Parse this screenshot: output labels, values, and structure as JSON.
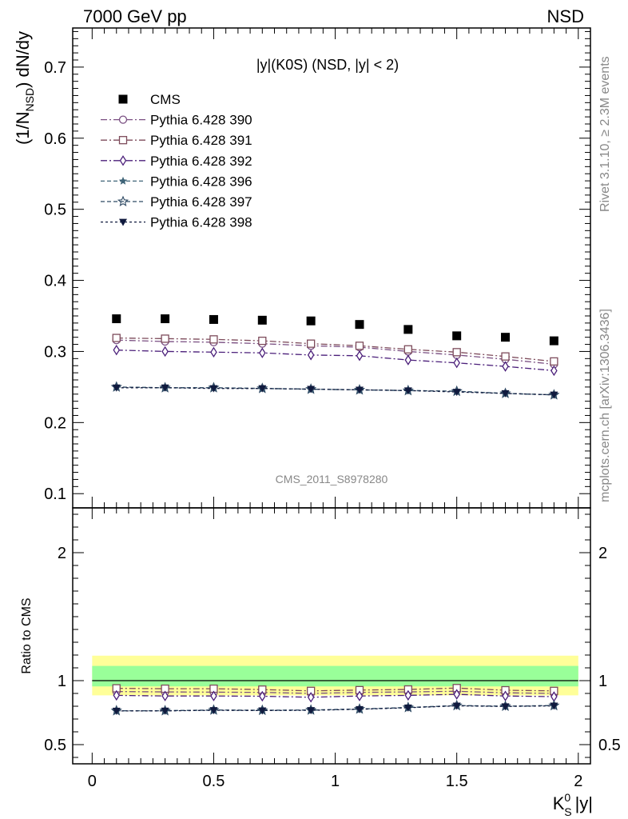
{
  "header": {
    "left": "7000 GeV pp",
    "right": "NSD"
  },
  "side_labels": {
    "rivet": "Rivet 3.1.10, ≥ 2.3M events",
    "mcplots": "mcplots.cern.ch [arXiv:1306.3436]"
  },
  "watermark": "CMS_2011_S8978280",
  "colors": {
    "cms": "#000000",
    "p390": "#7a4f82",
    "p391": "#7d4b5b",
    "p392": "#4b1f7a",
    "p396": "#3f6478",
    "p397": "#2f4a64",
    "p398": "#101a3e",
    "band_yellow": "#ffff99",
    "band_green": "#99ff99"
  },
  "chart_data": [
    {
      "type": "scatter",
      "panel": "main",
      "title": "|y|(K0S) (NSD, |y| < 2)",
      "ylabel": "(1/N_NSD) dN/dy",
      "xlim": [
        -0.08,
        2.05
      ],
      "ylim": [
        0.08,
        0.755
      ],
      "yticks": [
        0.1,
        0.2,
        0.3,
        0.4,
        0.5,
        0.6,
        0.7
      ],
      "ytick_labels": [
        "0.1",
        "0.2",
        "0.3",
        "0.4",
        "0.5",
        "0.6",
        "0.7"
      ],
      "x": [
        0.1,
        0.3,
        0.5,
        0.7,
        0.9,
        1.1,
        1.3,
        1.5,
        1.7,
        1.9
      ],
      "legend_position": "top-left",
      "series": [
        {
          "key": "cms",
          "name": "CMS",
          "marker": "square-filled",
          "values": [
            0.346,
            0.346,
            0.345,
            0.344,
            0.343,
            0.338,
            0.331,
            0.322,
            0.32,
            0.315
          ]
        },
        {
          "key": "p390",
          "name": "Pythia 6.428 390",
          "marker": "circle-open",
          "dash": "8,3,2,3",
          "values": [
            0.316,
            0.314,
            0.313,
            0.311,
            0.308,
            0.306,
            0.3,
            0.295,
            0.289,
            0.282
          ]
        },
        {
          "key": "p391",
          "name": "Pythia 6.428 391",
          "marker": "square-open",
          "dash": "8,3,2,3",
          "values": [
            0.319,
            0.318,
            0.317,
            0.315,
            0.311,
            0.308,
            0.303,
            0.299,
            0.293,
            0.286
          ]
        },
        {
          "key": "p392",
          "name": "Pythia 6.428 392",
          "marker": "diamond-open",
          "dash": "8,3,2,3",
          "values": [
            0.302,
            0.3,
            0.299,
            0.298,
            0.295,
            0.294,
            0.288,
            0.284,
            0.279,
            0.273
          ]
        },
        {
          "key": "p396",
          "name": "Pythia 6.428 396",
          "marker": "star-filled",
          "dash": "5,3",
          "values": [
            0.25,
            0.249,
            0.249,
            0.248,
            0.247,
            0.246,
            0.245,
            0.244,
            0.241,
            0.239
          ]
        },
        {
          "key": "p397",
          "name": "Pythia 6.428 397",
          "marker": "star-open",
          "dash": "5,3",
          "values": [
            0.25,
            0.249,
            0.249,
            0.248,
            0.247,
            0.246,
            0.245,
            0.244,
            0.241,
            0.239
          ]
        },
        {
          "key": "p398",
          "name": "Pythia 6.428 398",
          "marker": "triangle-down-filled",
          "dash": "3,3",
          "values": [
            0.249,
            0.249,
            0.248,
            0.248,
            0.247,
            0.246,
            0.245,
            0.243,
            0.241,
            0.239
          ]
        }
      ]
    },
    {
      "type": "scatter",
      "panel": "ratio",
      "ylabel": "Ratio to CMS",
      "xlabel": "K0S |y|",
      "xlim": [
        -0.08,
        2.05
      ],
      "ylim": [
        0.35,
        2.35
      ],
      "yticks": [
        0.5,
        1,
        2
      ],
      "ytick_labels": [
        "0.5",
        "1",
        "2"
      ],
      "xticks": [
        0,
        0.5,
        1,
        1.5,
        2
      ],
      "xtick_labels": [
        "0",
        "0.5",
        "1",
        "1.5",
        "2"
      ],
      "band_yellow": [
        0.885,
        1.195
      ],
      "band_green": [
        0.955,
        1.115
      ],
      "x": [
        0.1,
        0.3,
        0.5,
        0.7,
        0.9,
        1.1,
        1.3,
        1.5,
        1.7,
        1.9
      ],
      "series": [
        {
          "key": "p390",
          "values": [
            0.915,
            0.912,
            0.91,
            0.908,
            0.9,
            0.908,
            0.912,
            0.917,
            0.905,
            0.9
          ]
        },
        {
          "key": "p391",
          "values": [
            0.94,
            0.937,
            0.937,
            0.93,
            0.92,
            0.926,
            0.931,
            0.942,
            0.925,
            0.92
          ]
        },
        {
          "key": "p392",
          "values": [
            0.885,
            0.88,
            0.88,
            0.878,
            0.87,
            0.88,
            0.885,
            0.893,
            0.88,
            0.875
          ]
        },
        {
          "key": "p396",
          "values": [
            0.765,
            0.765,
            0.77,
            0.768,
            0.77,
            0.778,
            0.79,
            0.805,
            0.8,
            0.805
          ]
        },
        {
          "key": "p397",
          "values": [
            0.765,
            0.765,
            0.77,
            0.768,
            0.77,
            0.778,
            0.79,
            0.805,
            0.8,
            0.805
          ]
        },
        {
          "key": "p398",
          "values": [
            0.763,
            0.764,
            0.768,
            0.766,
            0.768,
            0.776,
            0.788,
            0.803,
            0.798,
            0.803
          ]
        }
      ]
    }
  ]
}
